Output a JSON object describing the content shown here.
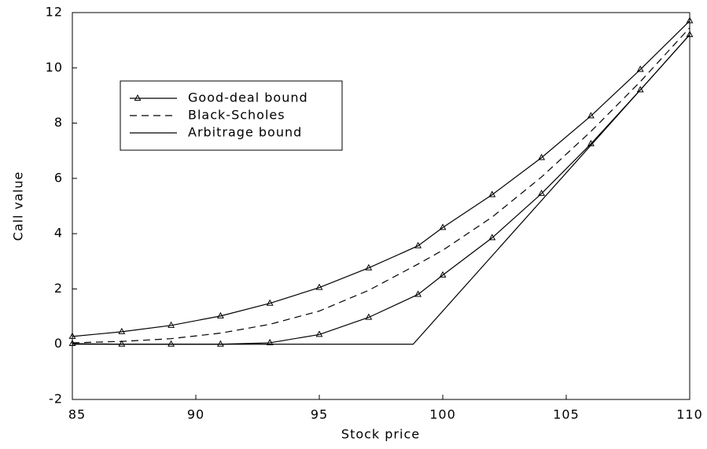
{
  "chart_data": {
    "type": "line",
    "x_label": "Stock price",
    "y_label": "Call value",
    "xlim": [
      85,
      110
    ],
    "xticks": [
      85,
      90,
      95,
      100,
      105,
      110
    ],
    "ylim": [
      -2,
      12
    ],
    "yticks": [
      -2,
      0,
      2,
      4,
      6,
      8,
      10,
      12
    ],
    "grid": false,
    "legend": "upper left",
    "series": [
      {
        "name": "Good-deal bound",
        "color": "#000000",
        "linestyle": "solid",
        "marker": "triangle",
        "x": [
          85,
          87,
          89,
          91,
          93,
          95,
          97,
          99,
          100,
          102,
          104,
          106,
          108,
          110
        ],
        "values": [
          0.28,
          0.45,
          0.68,
          1.02,
          1.48,
          2.05,
          2.76,
          3.56,
          4.22,
          5.41,
          6.75,
          8.26,
          9.94,
          11.7
        ]
      },
      {
        "color": "#000000",
        "linestyle": "solid",
        "marker": "triangle",
        "x": [
          85,
          87,
          89,
          91,
          93,
          95,
          97,
          99,
          100,
          102,
          104,
          106,
          108,
          110
        ],
        "values": [
          0.02,
          0,
          0,
          0,
          0.05,
          0.35,
          0.97,
          1.8,
          2.5,
          3.85,
          5.45,
          7.25,
          9.2,
          11.2
        ]
      },
      {
        "name": "Black-Scholes",
        "color": "#000000",
        "linestyle": "dashed",
        "marker": "none",
        "x": [
          85,
          87,
          89,
          91,
          93,
          95,
          97,
          99,
          100,
          102,
          104,
          106,
          108,
          110
        ],
        "values": [
          0.05,
          0.1,
          0.2,
          0.4,
          0.72,
          1.2,
          1.95,
          2.9,
          3.4,
          4.6,
          6.05,
          7.7,
          9.5,
          11.45
        ]
      },
      {
        "name": "Arbitrage bound",
        "color": "#000000",
        "linestyle": "solid",
        "marker": "none",
        "x": [
          85,
          98.8,
          110
        ],
        "values": [
          0,
          0,
          11.2
        ]
      }
    ]
  }
}
